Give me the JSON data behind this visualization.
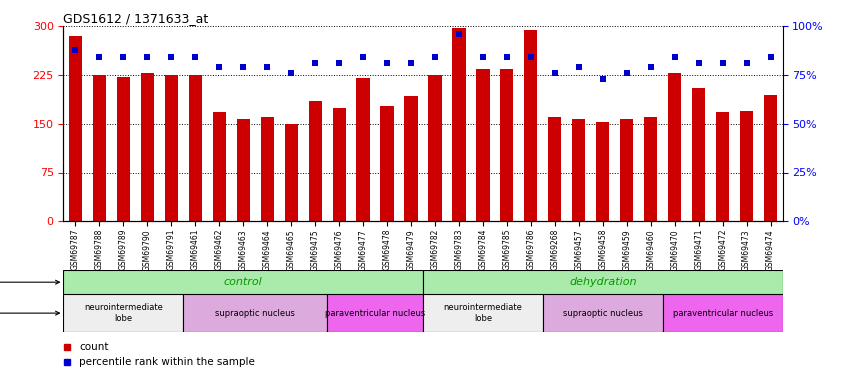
{
  "title": "GDS1612 / 1371633_at",
  "samples": [
    "GSM69787",
    "GSM69788",
    "GSM69789",
    "GSM69790",
    "GSM69791",
    "GSM69461",
    "GSM69462",
    "GSM69463",
    "GSM69464",
    "GSM69465",
    "GSM69475",
    "GSM69476",
    "GSM69477",
    "GSM69478",
    "GSM69479",
    "GSM69782",
    "GSM69783",
    "GSM69784",
    "GSM69785",
    "GSM69786",
    "GSM69268",
    "GSM69457",
    "GSM69458",
    "GSM69459",
    "GSM69460",
    "GSM69470",
    "GSM69471",
    "GSM69472",
    "GSM69473",
    "GSM69474"
  ],
  "counts": [
    285,
    225,
    222,
    228,
    225,
    225,
    168,
    158,
    160,
    150,
    185,
    175,
    220,
    178,
    192,
    225,
    297,
    235,
    235,
    295,
    160,
    158,
    152,
    158,
    160,
    228,
    205,
    168,
    170,
    195
  ],
  "percentiles": [
    88,
    84,
    84,
    84,
    84,
    84,
    79,
    79,
    79,
    76,
    81,
    81,
    84,
    81,
    81,
    84,
    96,
    84,
    84,
    84,
    76,
    79,
    73,
    76,
    79,
    84,
    81,
    81,
    81,
    84
  ],
  "ylim_left": [
    0,
    300
  ],
  "ylim_right": [
    0,
    100
  ],
  "yticks_left": [
    0,
    75,
    150,
    225,
    300
  ],
  "yticks_right": [
    0,
    25,
    50,
    75,
    100
  ],
  "bar_color": "#cc0000",
  "dot_color": "#0000cc",
  "bg_color": "#ffffff",
  "protocol_groups": [
    {
      "label": "control",
      "start": 0,
      "end": 15,
      "color": "#aaeaaa"
    },
    {
      "label": "dehydration",
      "start": 15,
      "end": 30,
      "color": "#aaeaaa"
    }
  ],
  "tissue_groups": [
    {
      "label": "neurointermediate\nlobe",
      "start": 0,
      "end": 5,
      "color": "#eeeeee"
    },
    {
      "label": "supraoptic nucleus",
      "start": 5,
      "end": 11,
      "color": "#ddaadd"
    },
    {
      "label": "paraventricular nucleus",
      "start": 11,
      "end": 15,
      "color": "#ee66ee"
    },
    {
      "label": "neurointermediate\nlobe",
      "start": 15,
      "end": 20,
      "color": "#eeeeee"
    },
    {
      "label": "supraoptic nucleus",
      "start": 20,
      "end": 25,
      "color": "#ddaadd"
    },
    {
      "label": "paraventricular nucleus",
      "start": 25,
      "end": 30,
      "color": "#ee66ee"
    }
  ]
}
